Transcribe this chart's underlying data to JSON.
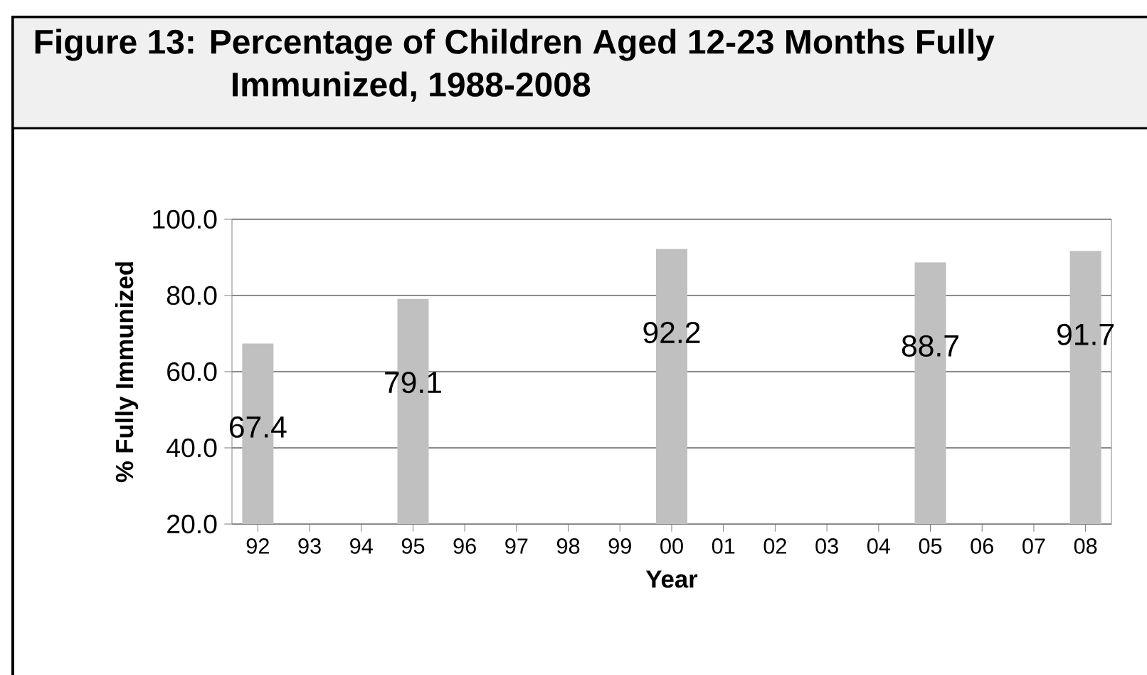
{
  "chart_data": {
    "type": "bar",
    "title": "Figure 13:  Percentage of Children Aged 12-23 Months Fully Immunized, 1988-2008",
    "xlabel": "Year",
    "ylabel": "% Fully Immunized",
    "categories": [
      "92",
      "93",
      "94",
      "95",
      "96",
      "97",
      "98",
      "99",
      "00",
      "01",
      "02",
      "03",
      "04",
      "05",
      "06",
      "07",
      "08"
    ],
    "values": [
      67.4,
      null,
      null,
      79.1,
      null,
      null,
      null,
      null,
      92.2,
      null,
      null,
      null,
      null,
      88.7,
      null,
      null,
      91.7
    ],
    "color": "#c0c0c0",
    "ylim": [
      20,
      100
    ],
    "yticks": [
      {
        "value": 20,
        "label": "20.0"
      },
      {
        "value": 40,
        "label": "40.0"
      },
      {
        "value": 60,
        "label": "60.0"
      },
      {
        "value": 80,
        "label": "80.0"
      },
      {
        "value": 100,
        "label": "100.0"
      }
    ],
    "grid": "y",
    "data_labels": true
  }
}
